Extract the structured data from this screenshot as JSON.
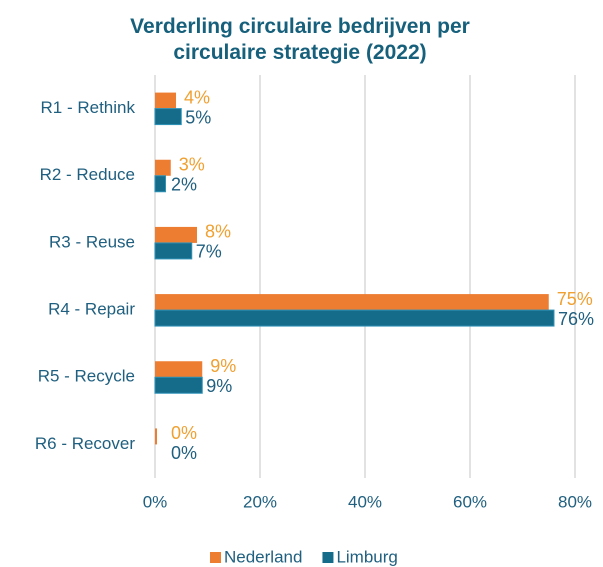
{
  "chart_data": {
    "type": "bar",
    "orientation": "horizontal",
    "title": "Verderling circulaire bedrijven per circulaire strategie (2022)",
    "categories": [
      "R1 - Rethink",
      "R2 - Reduce",
      "R3 - Reuse",
      "R4 - Repair",
      "R5 - Recycle",
      "R6 - Recover"
    ],
    "series": [
      {
        "name": "Nederland",
        "color": "#ed7d31",
        "label_color": "#f0a030",
        "values": [
          4,
          3,
          8,
          75,
          9,
          0
        ],
        "value_labels": [
          "4%",
          "3%",
          "8%",
          "75%",
          "9%",
          "0%"
        ]
      },
      {
        "name": "Limburg",
        "color": "#156b8a",
        "label_color": "#1f5f7f",
        "values": [
          5,
          2,
          7,
          76,
          9,
          0
        ],
        "value_labels": [
          "5%",
          "2%",
          "7%",
          "76%",
          "9%",
          "0%"
        ]
      }
    ],
    "xlim": [
      0,
      80
    ],
    "xticks": [
      {
        "value": 0,
        "label": "0%"
      },
      {
        "value": 20,
        "label": "20%"
      },
      {
        "value": 40,
        "label": "40%"
      },
      {
        "value": 60,
        "label": "60%"
      },
      {
        "value": 80,
        "label": "80%"
      }
    ],
    "grid": true,
    "legend": "bottom"
  }
}
